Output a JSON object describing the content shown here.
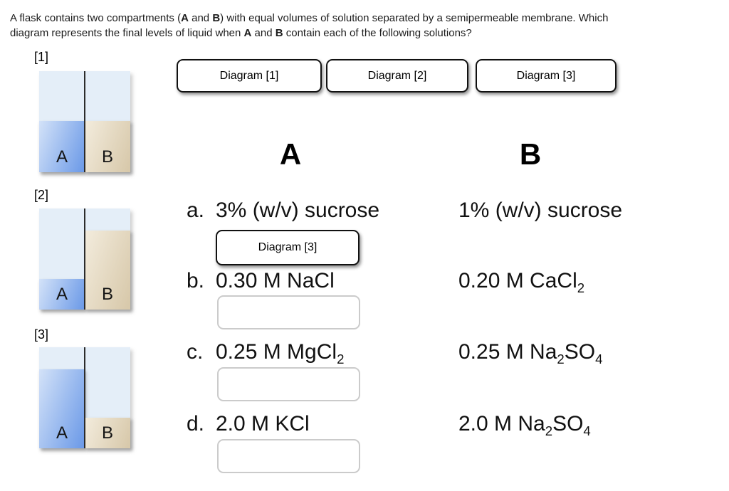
{
  "question": {
    "text": "A flask contains two compartments (**A** and **B**) with equal volumes of solution separated by a semipermeable membrane.  Which\ndiagram represents the final levels of liquid when **A** and **B** contain each of the following solutions?"
  },
  "compartment_labels": {
    "a": "A",
    "b": "B"
  },
  "diagrams": [
    {
      "label": "[1]",
      "a_level_pct": 51,
      "b_level_pct": 51
    },
    {
      "label": "[2]",
      "a_level_pct": 30,
      "b_level_pct": 78
    },
    {
      "label": "[3]",
      "a_level_pct": 78,
      "b_level_pct": 30
    }
  ],
  "choice_buttons": [
    "Diagram [1]",
    "Diagram [2]",
    "Diagram [3]"
  ],
  "table": {
    "col_a_header": "A",
    "col_b_header": "B",
    "rows": [
      {
        "letter": "a.",
        "a": "3% (w/v) sucrose",
        "b": "1% (w/v) sucrose",
        "answer": "Diagram [3]"
      },
      {
        "letter": "b.",
        "a": "0.30 M NaCl",
        "b": "0.20 M CaCl_{2}",
        "answer": ""
      },
      {
        "letter": "c.",
        "a": "0.25 M MgCl_{2}",
        "b": "0.25 M Na_{2}SO_{4}",
        "answer": ""
      },
      {
        "letter": "d.",
        "a": "2.0 M KCl",
        "b": "2.0 M Na_{2}SO_{4}",
        "answer": ""
      }
    ]
  },
  "colors": {
    "flask_empty": "#e4eef8",
    "liquid_a_light": "#d3e2f8",
    "liquid_a_dark": "#6f9ce8",
    "liquid_b_light": "#f3ecdd",
    "liquid_b_dark": "#d8c9ab",
    "membrane": "#2b2b2b",
    "button_border": "#111111",
    "dropzone_border": "#cbcbcb",
    "text": "#111111"
  }
}
